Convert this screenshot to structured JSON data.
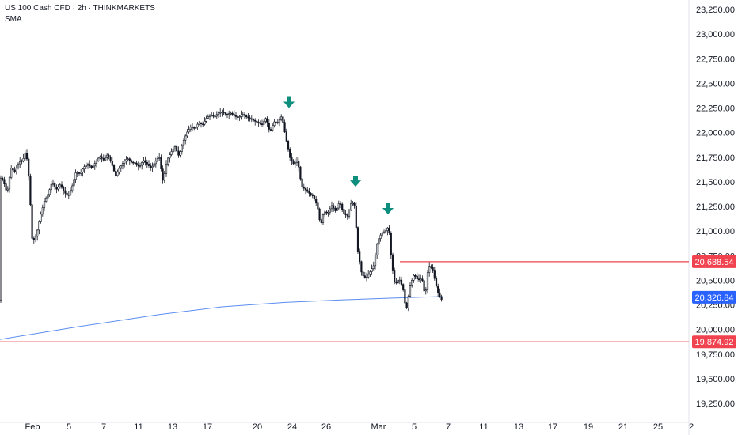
{
  "header": {
    "title": "US 100 Cash CFD · 2h · THINKMARKETS",
    "indicator": "SMA"
  },
  "colors": {
    "candle": "#131722",
    "sma": "#5b8def",
    "level": "#f0424f",
    "sma_tag": "#2962ff",
    "arrow": "#0e8f7e"
  },
  "chart_data": {
    "type": "candlestick",
    "symbol": "US 100 Cash CFD",
    "interval": "2h",
    "broker": "THINKMARKETS",
    "indicator": "SMA",
    "ylim": [
      19150,
      23350
    ],
    "y_ticks": [
      "23,250.00",
      "23,000.00",
      "22,750.00",
      "22,500.00",
      "22,250.00",
      "22,000.00",
      "21,750.00",
      "21,500.00",
      "21,250.00",
      "21,000.00",
      "20,750.00",
      "20,500.00",
      "20,250.00",
      "20,000.00",
      "19,750.00",
      "19,500.00",
      "19,250.00"
    ],
    "x_ticks": [
      "Feb",
      "5",
      "7",
      "11",
      "13",
      "17",
      "20",
      "24",
      "26",
      "Mar",
      "5",
      "7",
      "11",
      "13",
      "17",
      "19",
      "21",
      "25",
      "2"
    ],
    "price_path": [
      [
        0,
        21550
      ],
      [
        5,
        21520
      ],
      [
        10,
        21380
      ],
      [
        15,
        21640
      ],
      [
        20,
        21600
      ],
      [
        25,
        21700
      ],
      [
        30,
        21720
      ],
      [
        34,
        21820
      ],
      [
        38,
        21500
      ],
      [
        42,
        20880
      ],
      [
        47,
        20960
      ],
      [
        52,
        21150
      ],
      [
        57,
        21300
      ],
      [
        62,
        21380
      ],
      [
        67,
        21500
      ],
      [
        72,
        21420
      ],
      [
        77,
        21470
      ],
      [
        82,
        21400
      ],
      [
        87,
        21350
      ],
      [
        92,
        21450
      ],
      [
        97,
        21600
      ],
      [
        102,
        21580
      ],
      [
        107,
        21650
      ],
      [
        112,
        21680
      ],
      [
        117,
        21640
      ],
      [
        122,
        21700
      ],
      [
        127,
        21760
      ],
      [
        132,
        21720
      ],
      [
        137,
        21780
      ],
      [
        142,
        21690
      ],
      [
        147,
        21560
      ],
      [
        152,
        21640
      ],
      [
        157,
        21700
      ],
      [
        162,
        21740
      ],
      [
        167,
        21700
      ],
      [
        172,
        21690
      ],
      [
        177,
        21650
      ],
      [
        182,
        21720
      ],
      [
        187,
        21680
      ],
      [
        192,
        21640
      ],
      [
        197,
        21700
      ],
      [
        202,
        21760
      ],
      [
        207,
        21500
      ],
      [
        212,
        21720
      ],
      [
        217,
        21800
      ],
      [
        222,
        21860
      ],
      [
        227,
        21760
      ],
      [
        232,
        21900
      ],
      [
        237,
        22000
      ],
      [
        242,
        22060
      ],
      [
        247,
        22040
      ],
      [
        252,
        22100
      ],
      [
        257,
        22080
      ],
      [
        262,
        22150
      ],
      [
        267,
        22180
      ],
      [
        272,
        22160
      ],
      [
        277,
        22200
      ],
      [
        282,
        22210
      ],
      [
        287,
        22180
      ],
      [
        292,
        22200
      ],
      [
        297,
        22170
      ],
      [
        302,
        22150
      ],
      [
        307,
        22190
      ],
      [
        312,
        22160
      ],
      [
        317,
        22140
      ],
      [
        322,
        22120
      ],
      [
        327,
        22100
      ],
      [
        332,
        22080
      ],
      [
        337,
        22150
      ],
      [
        342,
        22000
      ],
      [
        347,
        22110
      ],
      [
        352,
        22100
      ],
      [
        357,
        22170
      ],
      [
        362,
        21950
      ],
      [
        367,
        21750
      ],
      [
        372,
        21680
      ],
      [
        377,
        21720
      ],
      [
        382,
        21450
      ],
      [
        387,
        21420
      ],
      [
        392,
        21380
      ],
      [
        397,
        21350
      ],
      [
        402,
        21250
      ],
      [
        406,
        21050
      ],
      [
        410,
        21200
      ],
      [
        415,
        21180
      ],
      [
        420,
        21260
      ],
      [
        425,
        21200
      ],
      [
        430,
        21300
      ],
      [
        435,
        21180
      ],
      [
        440,
        21150
      ],
      [
        445,
        21300
      ],
      [
        449,
        21250
      ],
      [
        453,
        20800
      ],
      [
        458,
        20560
      ],
      [
        463,
        20520
      ],
      [
        468,
        20580
      ],
      [
        473,
        20650
      ],
      [
        478,
        20900
      ],
      [
        483,
        20980
      ],
      [
        488,
        21000
      ],
      [
        492,
        21050
      ],
      [
        496,
        20650
      ],
      [
        500,
        20450
      ],
      [
        505,
        20520
      ],
      [
        510,
        20420
      ],
      [
        514,
        20180
      ],
      [
        519,
        20450
      ],
      [
        524,
        20560
      ],
      [
        529,
        20500
      ],
      [
        534,
        20520
      ],
      [
        538,
        20330
      ],
      [
        542,
        20650
      ],
      [
        547,
        20620
      ],
      [
        551,
        20480
      ],
      [
        555,
        20350
      ],
      [
        559,
        20300
      ]
    ],
    "sma": [
      [
        0,
        19900
      ],
      [
        100,
        20030
      ],
      [
        200,
        20150
      ],
      [
        280,
        20230
      ],
      [
        360,
        20275
      ],
      [
        430,
        20300
      ],
      [
        500,
        20320
      ],
      [
        560,
        20335
      ]
    ],
    "levels": [
      {
        "value": 20688.54,
        "label": "20,688.54",
        "from_x": 505
      },
      {
        "value": 19874.92,
        "label": "19,874.92",
        "from_x": 0
      }
    ],
    "sma_last": {
      "value": 20326.84,
      "label": "20,326.84"
    },
    "arrows": [
      {
        "x": 365,
        "price": 22250
      },
      {
        "x": 449,
        "price": 21450
      },
      {
        "x": 490,
        "price": 21170
      }
    ]
  }
}
